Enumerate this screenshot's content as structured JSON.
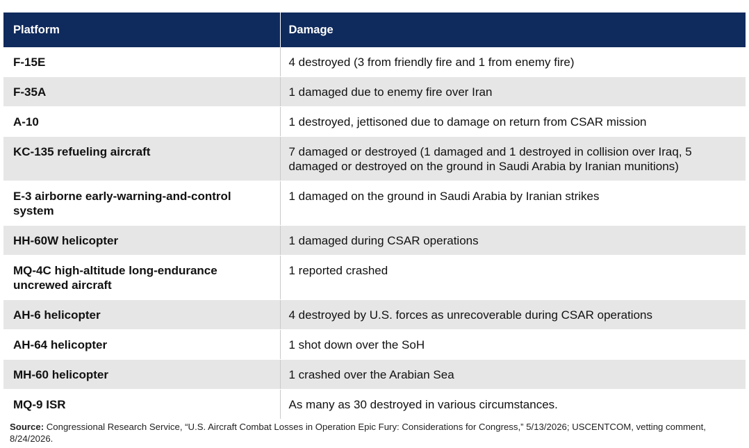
{
  "table": {
    "headers": [
      "Platform",
      "Damage"
    ],
    "rows": [
      {
        "platform": "F-15E",
        "damage": "4 destroyed (3 from friendly fire and 1 from enemy fire)"
      },
      {
        "platform": "F-35A",
        "damage": "1 damaged due to enemy fire over Iran"
      },
      {
        "platform": "A-10",
        "damage": "1 destroyed, jettisoned due to damage on return from CSAR mission"
      },
      {
        "platform": "KC-135 refueling aircraft",
        "damage": "7 damaged or destroyed (1 damaged and 1 destroyed in collision over Iraq, 5 damaged or destroyed on the ground in Saudi Arabia by Iranian munitions)"
      },
      {
        "platform": "E-3 airborne early-warning-and-control system",
        "damage": "1 damaged on the ground in Saudi Arabia by Iranian strikes"
      },
      {
        "platform": "HH-60W helicopter",
        "damage": "1 damaged during CSAR operations"
      },
      {
        "platform": "MQ-4C high-altitude long-endurance uncrewed aircraft",
        "damage": "1 reported crashed"
      },
      {
        "platform": "AH-6 helicopter",
        "damage": "4 destroyed by U.S. forces as unrecoverable during CSAR operations"
      },
      {
        "platform": "AH-64 helicopter",
        "damage": "1 shot down over the SoH"
      },
      {
        "platform": "MH-60 helicopter",
        "damage": "1 crashed over the Arabian Sea"
      },
      {
        "platform": "MQ-9 ISR",
        "damage": "As many as 30 destroyed in various circumstances."
      }
    ]
  },
  "source": {
    "label": "Source:",
    "text": "Congressional Research Service, “U.S. Aircraft Combat Losses in Operation Epic Fury: Considerations for Congress,” 5/13/2026; USCENTCOM, vetting comment, 8/24/2026."
  },
  "colors": {
    "header_bg": "#0f2a5c",
    "header_text": "#ffffff",
    "row_alt_bg": "#e6e6e6",
    "row_bg": "#ffffff"
  }
}
